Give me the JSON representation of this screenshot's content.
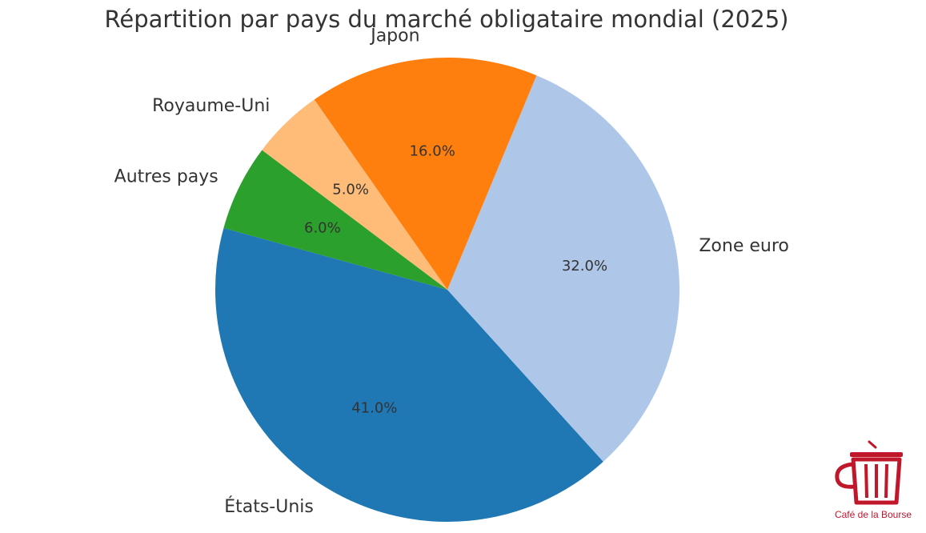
{
  "chart_data": {
    "type": "pie",
    "title": "Répartition par pays du marché obligataire mondial (2025)",
    "start_angle_deg": 143,
    "direction": "counterclockwise",
    "slices": [
      {
        "label": "Autres pays",
        "value": 6.0,
        "pct_label": "6.0%",
        "color": "#2ca02c"
      },
      {
        "label": "États-Unis",
        "value": 41.0,
        "pct_label": "41.0%",
        "color": "#1f77b4"
      },
      {
        "label": "Zone euro",
        "value": 32.0,
        "pct_label": "32.0%",
        "color": "#aec7e8"
      },
      {
        "label": "Japon",
        "value": 16.0,
        "pct_label": "16.0%",
        "color": "#ff7f0e"
      },
      {
        "label": "Royaume-Uni",
        "value": 5.0,
        "pct_label": "5.0%",
        "color": "#ffbb78"
      }
    ]
  },
  "logo": {
    "text": "Café de la Bourse",
    "color": "#c0172b",
    "icon": "trash-bin-logo-icon"
  }
}
